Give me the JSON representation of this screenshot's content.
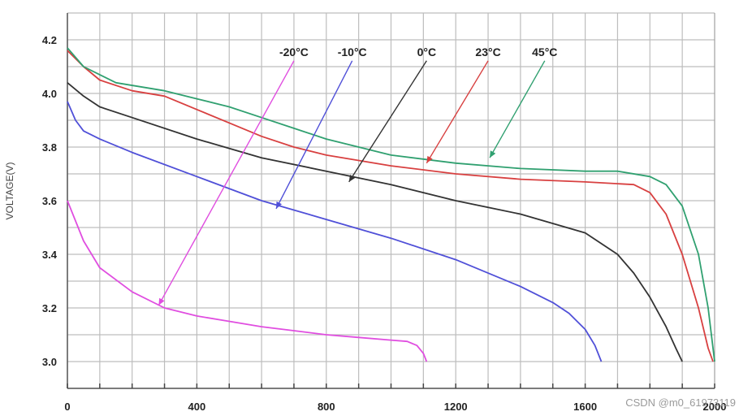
{
  "chart_data": {
    "type": "line",
    "title": "",
    "xlabel": "",
    "ylabel": "VOLTAGE(V)",
    "xlim": [
      0,
      2000
    ],
    "ylim": [
      2.9,
      4.3
    ],
    "grid": true,
    "x_ticks": [
      "0",
      "400",
      "800",
      "1200",
      "1600",
      "2000"
    ],
    "x_tick_values": [
      0,
      400,
      800,
      1200,
      1600,
      2000
    ],
    "y_ticks": [
      "3.0",
      "3.2",
      "3.4",
      "3.6",
      "3.8",
      "4.0",
      "4.2"
    ],
    "y_tick_values": [
      3.0,
      3.2,
      3.4,
      3.6,
      3.8,
      4.0,
      4.2
    ],
    "series": [
      {
        "name": "-20°C",
        "color": "#e04ee0",
        "x": [
          0,
          50,
          100,
          200,
          300,
          400,
          500,
          600,
          700,
          800,
          900,
          1000,
          1050,
          1080,
          1100,
          1110
        ],
        "y": [
          3.6,
          3.45,
          3.35,
          3.26,
          3.2,
          3.17,
          3.15,
          3.13,
          3.115,
          3.1,
          3.09,
          3.08,
          3.075,
          3.06,
          3.03,
          3.0
        ],
        "label_x": 700,
        "arrow_to": [
          282,
          3.21
        ]
      },
      {
        "name": "-10°C",
        "color": "#5050d8",
        "x": [
          0,
          25,
          50,
          100,
          200,
          400,
          600,
          800,
          1000,
          1200,
          1400,
          1500,
          1550,
          1600,
          1630,
          1650
        ],
        "y": [
          3.97,
          3.9,
          3.86,
          3.83,
          3.78,
          3.69,
          3.6,
          3.53,
          3.46,
          3.38,
          3.28,
          3.22,
          3.18,
          3.12,
          3.06,
          3.0
        ],
        "label_x": 880,
        "arrow_to": [
          645,
          3.57
        ]
      },
      {
        "name": "0°C",
        "color": "#333333",
        "x": [
          0,
          50,
          100,
          200,
          400,
          600,
          800,
          1000,
          1200,
          1400,
          1600,
          1700,
          1750,
          1800,
          1850,
          1880,
          1900
        ],
        "y": [
          4.04,
          3.99,
          3.95,
          3.91,
          3.83,
          3.76,
          3.71,
          3.66,
          3.6,
          3.55,
          3.48,
          3.4,
          3.33,
          3.24,
          3.13,
          3.05,
          3.0
        ],
        "label_x": 1110,
        "arrow_to": [
          870,
          3.67
        ]
      },
      {
        "name": "23°C",
        "color": "#d84040",
        "x": [
          0,
          50,
          100,
          200,
          300,
          400,
          500,
          600,
          700,
          800,
          1000,
          1200,
          1400,
          1600,
          1750,
          1800,
          1850,
          1900,
          1950,
          1980,
          1995
        ],
        "y": [
          4.16,
          4.1,
          4.05,
          4.01,
          3.99,
          3.94,
          3.89,
          3.84,
          3.8,
          3.77,
          3.73,
          3.7,
          3.68,
          3.67,
          3.66,
          3.63,
          3.55,
          3.4,
          3.2,
          3.05,
          3.0
        ],
        "label_x": 1300,
        "arrow_to": [
          1110,
          3.74
        ]
      },
      {
        "name": "45°C",
        "color": "#30a070",
        "x": [
          0,
          50,
          100,
          150,
          300,
          400,
          500,
          600,
          700,
          800,
          900,
          1000,
          1200,
          1400,
          1600,
          1700,
          1800,
          1850,
          1900,
          1950,
          1980,
          2000
        ],
        "y": [
          4.17,
          4.1,
          4.07,
          4.04,
          4.01,
          3.98,
          3.95,
          3.91,
          3.87,
          3.83,
          3.8,
          3.77,
          3.74,
          3.72,
          3.71,
          3.71,
          3.69,
          3.66,
          3.58,
          3.4,
          3.2,
          3.0
        ],
        "label_x": 1475,
        "arrow_to": [
          1305,
          3.76
        ]
      }
    ]
  },
  "watermark": "CSDN @m0_61973119"
}
